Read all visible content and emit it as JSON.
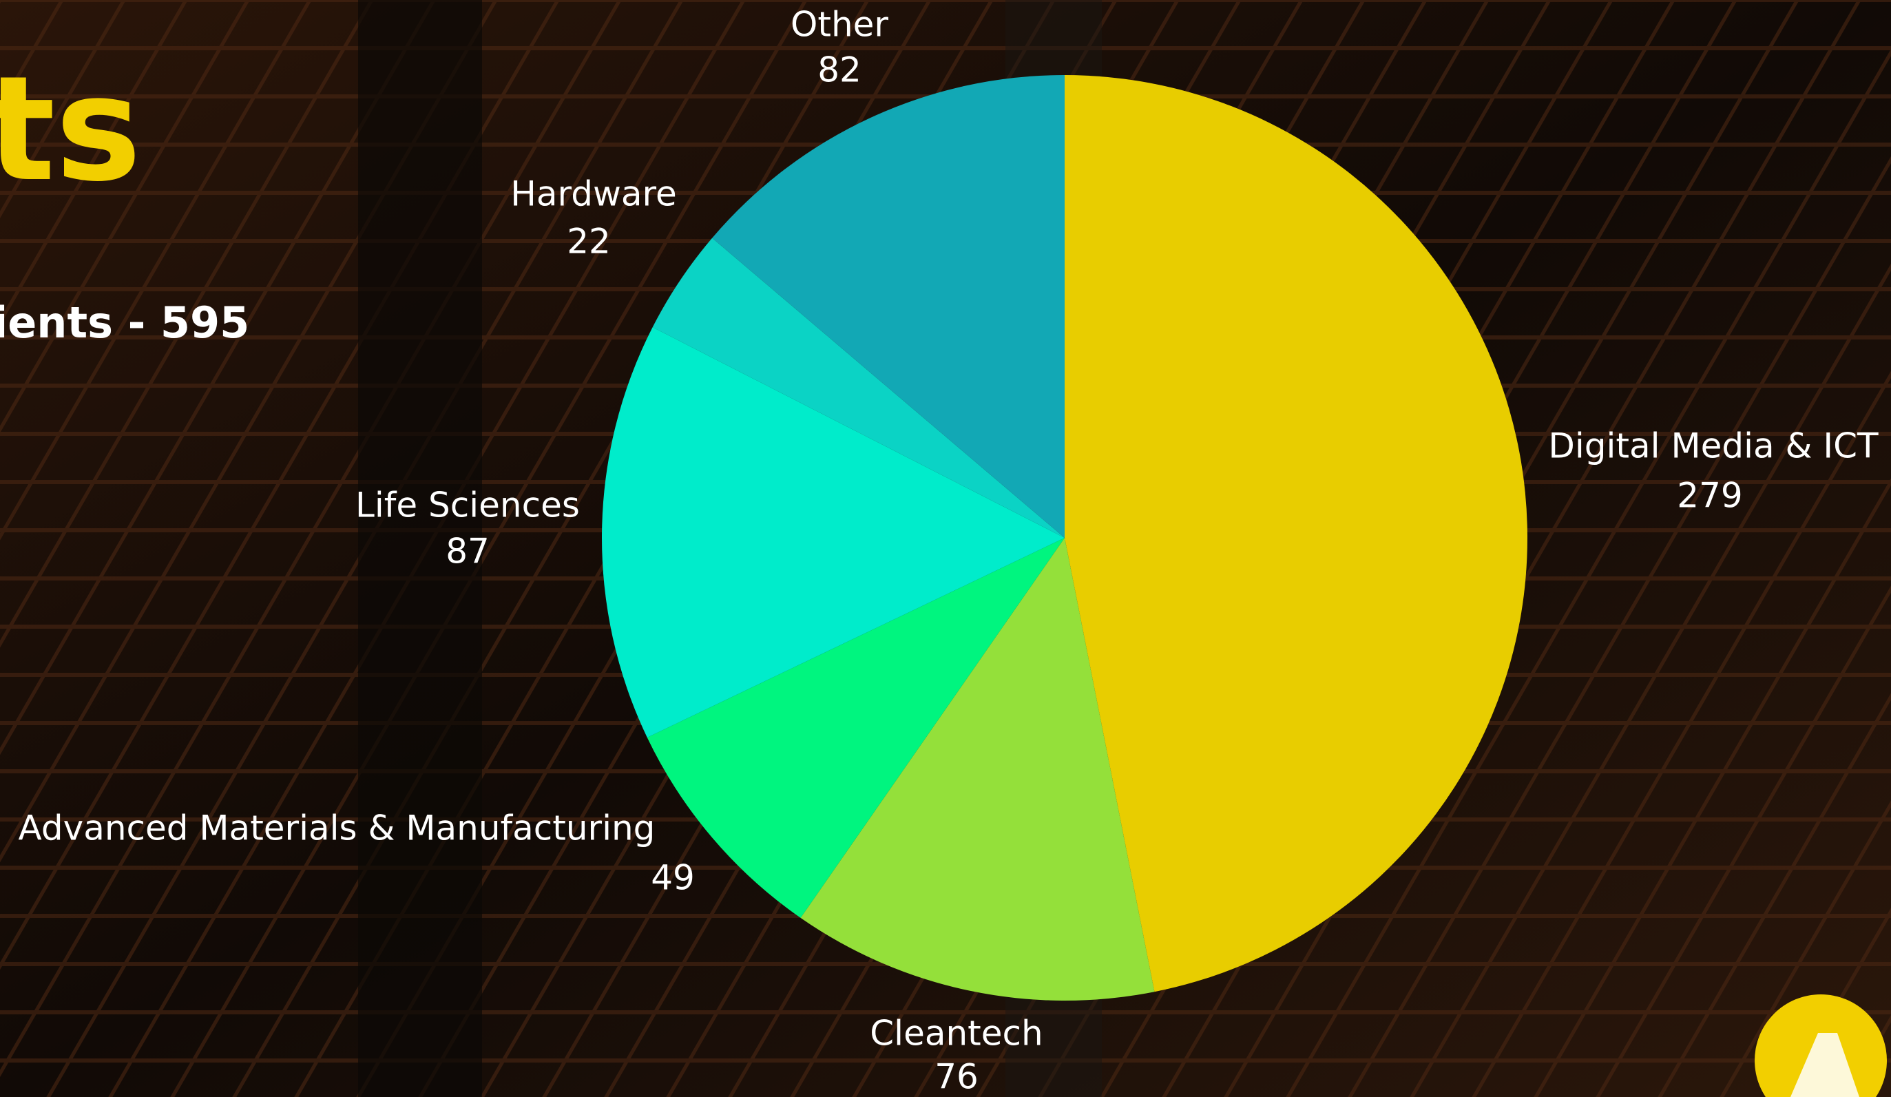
{
  "heading": "ts",
  "subheading": "ients - 595",
  "chart_data": {
    "type": "pie",
    "categories": [
      "Digital Media & ICT",
      "Cleantech",
      "Advanced Materials & Manufacturing",
      "Life Sciences",
      "Hardware",
      "Other"
    ],
    "values": [
      279,
      76,
      49,
      87,
      22,
      82
    ],
    "colors": [
      "#e8cd00",
      "#94e03a",
      "#00f57f",
      "#00eccb",
      "#0bd3c5",
      "#12a8b5"
    ]
  }
}
